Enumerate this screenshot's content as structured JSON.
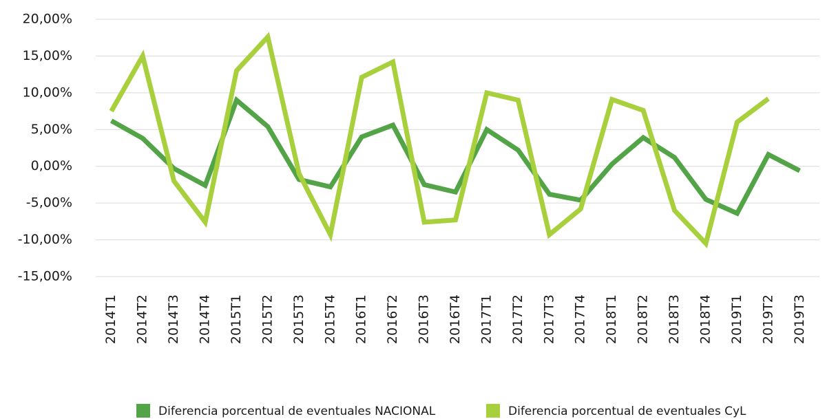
{
  "chart_data": {
    "type": "line",
    "categories": [
      "2014T1",
      "2014T2",
      "2014T3",
      "2014T4",
      "2015T1",
      "2015T2",
      "2015T3",
      "2015T4",
      "2016T1",
      "2016T2",
      "2016T3",
      "2016T4",
      "2017T1",
      "2017T2",
      "2017T3",
      "2017T4",
      "2018T1",
      "2018T2",
      "2018T3",
      "2018T4",
      "2019T1",
      "2019T2",
      "2019T3"
    ],
    "series": [
      {
        "name": "Diferencia porcentual de eventuales NACIONAL",
        "color": "#52a447",
        "values": [
          6.2,
          3.8,
          -0.3,
          -2.6,
          9.0,
          5.4,
          -1.8,
          -2.8,
          4.0,
          5.6,
          -2.5,
          -3.5,
          5.0,
          2.2,
          -3.8,
          -4.6,
          0.3,
          3.9,
          1.2,
          -4.5,
          -6.4,
          1.6,
          -0.6
        ]
      },
      {
        "name": "Diferencia porcentual de eventuales CyL",
        "color": "#a8cf3c",
        "values": [
          7.5,
          15.0,
          -2.0,
          -7.6,
          13.0,
          17.6,
          -1.0,
          -9.3,
          12.1,
          14.2,
          -7.6,
          -7.3,
          10.0,
          9.0,
          -9.3,
          -5.8,
          9.1,
          7.6,
          -6.0,
          -10.5,
          6.0,
          9.2,
          null
        ]
      }
    ],
    "ylim": [
      -15,
      20
    ],
    "yticks": [
      {
        "value": -15,
        "label": "-15,00%"
      },
      {
        "value": -10,
        "label": "-10,00%"
      },
      {
        "value": -5,
        "label": "-5,00%"
      },
      {
        "value": 0,
        "label": "0,00%"
      },
      {
        "value": 5,
        "label": "5,00%"
      },
      {
        "value": 10,
        "label": "10,00%"
      },
      {
        "value": 15,
        "label": "15,00%"
      },
      {
        "value": 20,
        "label": "20,00%"
      }
    ],
    "grid": true,
    "legend": "bottom"
  }
}
